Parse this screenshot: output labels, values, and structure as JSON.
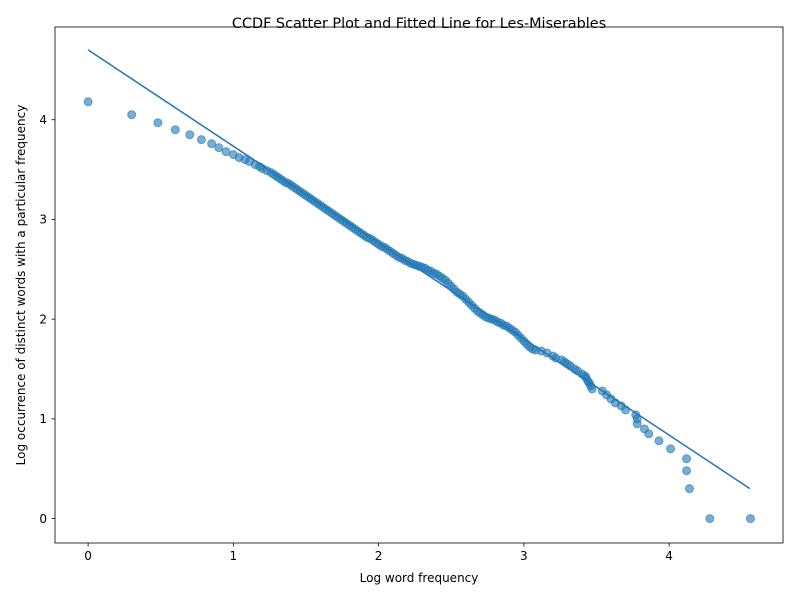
{
  "chart_data": {
    "type": "scatter",
    "title": "CCDF Scatter Plot and Fitted Line for Les-Miserables",
    "xlabel": "Log word frequency",
    "ylabel": "Log occurrence of distinct words with a particular frequency",
    "xlim": [
      -0.228,
      4.784
    ],
    "ylim": [
      -0.245,
      4.93
    ],
    "xticks": [
      0,
      1,
      2,
      3,
      4
    ],
    "xtick_labels": [
      "0",
      "1",
      "2",
      "3",
      "4"
    ],
    "yticks": [
      0,
      1,
      2,
      3,
      4
    ],
    "ytick_labels": [
      "0",
      "1",
      "2",
      "3",
      "4"
    ],
    "grid": false,
    "legend": "none",
    "colors": {
      "points": "#1f77b4",
      "line": "#1f77b4"
    },
    "fitted_line": {
      "x": [
        0,
        4.556
      ],
      "y": [
        4.7,
        0.3
      ]
    },
    "series": [
      {
        "x": [
          0.0,
          0.3,
          0.48,
          0.6,
          0.7,
          0.78,
          0.85,
          0.9,
          0.95,
          1.0,
          1.04,
          1.08,
          1.11,
          1.15,
          1.18,
          1.2,
          1.23,
          1.26,
          1.28,
          1.3,
          1.32,
          1.34,
          1.36,
          1.38,
          1.4,
          1.42,
          1.44,
          1.46,
          1.48,
          1.5,
          1.52,
          1.54,
          1.56,
          1.58,
          1.6,
          1.62,
          1.64,
          1.66,
          1.68,
          1.7,
          1.72,
          1.74,
          1.76,
          1.78,
          1.8,
          1.82,
          1.84,
          1.86,
          1.88,
          1.9,
          1.92,
          1.94,
          1.96,
          1.98,
          2.0,
          2.02,
          2.04,
          2.06,
          2.08,
          2.1,
          2.12,
          2.14,
          2.16,
          2.18,
          2.2,
          2.22,
          2.24,
          2.26,
          2.28,
          2.3,
          2.32,
          2.34,
          2.36,
          2.38,
          2.4,
          2.42,
          2.44,
          2.46,
          2.48,
          2.5,
          2.52,
          2.54,
          2.56,
          2.58,
          2.6,
          2.62,
          2.64,
          2.66,
          2.68,
          2.7,
          2.72,
          2.74,
          2.76,
          2.78,
          2.8,
          2.82,
          2.84,
          2.86,
          2.88,
          2.9,
          2.92,
          2.94,
          2.96,
          2.98,
          3.0,
          3.02,
          3.04,
          3.06,
          3.08,
          3.12,
          3.16,
          3.2,
          3.22,
          3.26,
          3.28,
          3.3,
          3.32,
          3.35,
          3.37,
          3.4,
          3.42,
          3.43,
          3.44,
          3.45,
          3.46,
          3.47,
          3.54,
          3.57,
          3.6,
          3.63,
          3.67,
          3.7,
          3.77,
          3.78,
          3.78,
          3.83,
          3.86,
          3.93,
          4.01,
          4.12,
          4.12,
          4.14,
          4.28,
          4.56
        ],
        "y": [
          4.18,
          4.05,
          3.97,
          3.9,
          3.85,
          3.8,
          3.76,
          3.72,
          3.68,
          3.65,
          3.62,
          3.6,
          3.58,
          3.55,
          3.53,
          3.51,
          3.49,
          3.47,
          3.45,
          3.43,
          3.41,
          3.39,
          3.37,
          3.36,
          3.34,
          3.32,
          3.3,
          3.28,
          3.26,
          3.24,
          3.22,
          3.2,
          3.18,
          3.16,
          3.14,
          3.12,
          3.1,
          3.08,
          3.06,
          3.04,
          3.02,
          3.0,
          2.98,
          2.96,
          2.94,
          2.92,
          2.9,
          2.88,
          2.86,
          2.84,
          2.82,
          2.81,
          2.79,
          2.77,
          2.75,
          2.73,
          2.72,
          2.7,
          2.68,
          2.66,
          2.64,
          2.62,
          2.61,
          2.59,
          2.58,
          2.56,
          2.55,
          2.54,
          2.53,
          2.52,
          2.51,
          2.49,
          2.48,
          2.46,
          2.45,
          2.43,
          2.41,
          2.39,
          2.36,
          2.33,
          2.3,
          2.27,
          2.25,
          2.23,
          2.2,
          2.17,
          2.14,
          2.11,
          2.08,
          2.06,
          2.04,
          2.02,
          2.01,
          2.0,
          1.99,
          1.97,
          1.96,
          1.94,
          1.93,
          1.91,
          1.89,
          1.87,
          1.84,
          1.81,
          1.78,
          1.75,
          1.72,
          1.7,
          1.69,
          1.68,
          1.66,
          1.63,
          1.61,
          1.59,
          1.57,
          1.55,
          1.53,
          1.5,
          1.48,
          1.45,
          1.43,
          1.41,
          1.38,
          1.36,
          1.33,
          1.3,
          1.28,
          1.24,
          1.2,
          1.16,
          1.13,
          1.09,
          1.04,
          1.0,
          0.95,
          0.9,
          0.85,
          0.78,
          0.7,
          0.6,
          0.48,
          0.3,
          0.0,
          0.0
        ]
      }
    ]
  }
}
